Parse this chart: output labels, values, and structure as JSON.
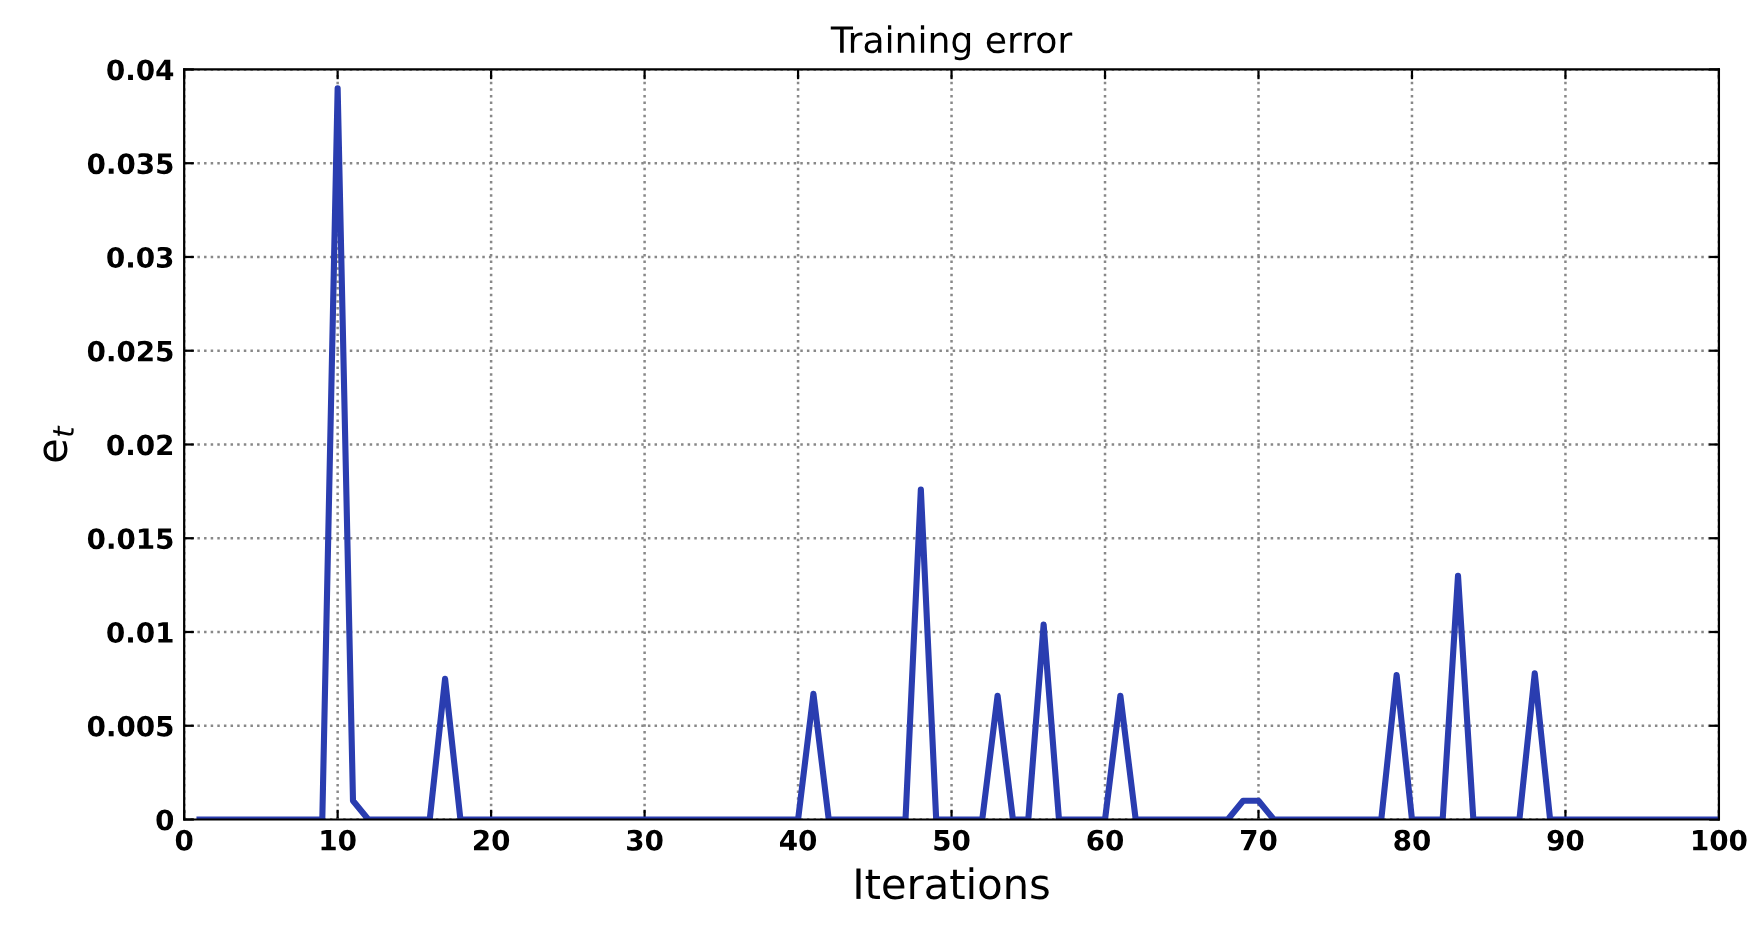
{
  "chart_data": {
    "type": "line",
    "title": "Training error",
    "xlabel": "Iterations",
    "ylabel": "e$_{t}$",
    "xlim": [
      0,
      100
    ],
    "xticks": [
      0,
      10,
      20,
      30,
      40,
      50,
      60,
      70,
      80,
      90,
      100
    ],
    "ylim": [
      0,
      0.04
    ],
    "yticks": [
      0,
      0.005,
      0.01,
      0.015,
      0.02,
      0.025,
      0.03,
      0.035,
      0.04
    ],
    "grid": true,
    "marker": "none",
    "series": [
      {
        "color": "#2a3db0",
        "line_style": "solid",
        "x": [
          1,
          9,
          10,
          11,
          12,
          16,
          17,
          18,
          40,
          41,
          42,
          47,
          48,
          49,
          52,
          53,
          54,
          55,
          56,
          57,
          60,
          61,
          62,
          68,
          69,
          70,
          71,
          78,
          79,
          80,
          82,
          83,
          84,
          87,
          88,
          89,
          100
        ],
        "values": [
          0,
          0,
          0.039,
          0.001,
          0,
          0,
          0.0075,
          0,
          0,
          0.0067,
          0,
          0,
          0.0176,
          0,
          0,
          0.0066,
          0,
          0,
          0.0104,
          0,
          0,
          0.0066,
          0,
          0,
          0.001,
          0.001,
          0,
          0,
          0.0077,
          0,
          0,
          0.013,
          0,
          0,
          0.0078,
          0,
          0
        ]
      }
    ]
  }
}
